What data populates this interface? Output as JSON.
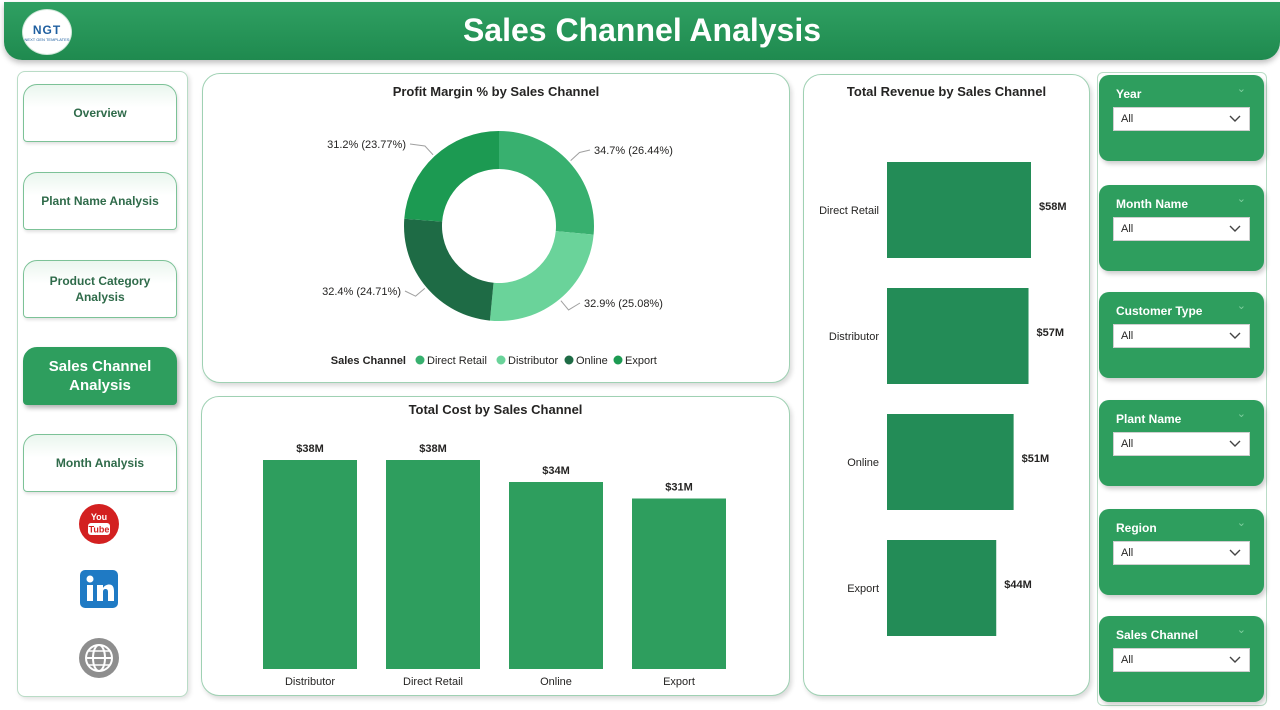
{
  "header": {
    "title": "Sales Channel Analysis",
    "logo_text": "NGT",
    "logo_subtext": "NEXT GEN TEMPLATES"
  },
  "nav": {
    "items": [
      {
        "label": "Overview"
      },
      {
        "label": "Plant Name Analysis"
      },
      {
        "label": "Product Category Analysis"
      },
      {
        "label": "Sales Channel Analysis",
        "active": true
      },
      {
        "label": "Month Analysis"
      }
    ],
    "social": [
      "youtube-icon",
      "linkedin-icon",
      "globe-icon"
    ]
  },
  "colors": {
    "accent": "#2e9e5e",
    "bar": "#2e9e5e",
    "revenue_bar": "#238c57",
    "direct_retail": "#38b06f",
    "distributor": "#6ad39a",
    "online": "#1e6b45",
    "export": "#1c9a52"
  },
  "filters": [
    {
      "label": "Year",
      "value": "All"
    },
    {
      "label": "Month Name",
      "value": "All"
    },
    {
      "label": "Customer Type",
      "value": "All"
    },
    {
      "label": "Plant Name",
      "value": "All"
    },
    {
      "label": "Region",
      "value": "All"
    },
    {
      "label": "Sales Channel",
      "value": "All"
    }
  ],
  "chart_data": [
    {
      "type": "pie",
      "title": "Profit Margin % by Sales Channel",
      "legend_title": "Sales Channel",
      "legend_position": "bottom",
      "slices": [
        {
          "name": "Direct Retail",
          "value": 34.7,
          "share": 26.44,
          "label": "34.7% (26.44%)"
        },
        {
          "name": "Distributor",
          "value": 32.9,
          "share": 25.08,
          "label": "32.9% (25.08%)"
        },
        {
          "name": "Online",
          "value": 32.4,
          "share": 24.71,
          "label": "32.4% (24.71%)"
        },
        {
          "name": "Export",
          "value": 31.2,
          "share": 23.77,
          "label": "31.2% (23.77%)"
        }
      ]
    },
    {
      "type": "bar",
      "title": "Total Cost by Sales Channel",
      "categories": [
        "Distributor",
        "Direct Retail",
        "Online",
        "Export"
      ],
      "values": [
        38,
        38,
        34,
        31
      ],
      "value_labels": [
        "$38M",
        "$38M",
        "$34M",
        "$31M"
      ],
      "unit": "$M",
      "ylim": [
        0,
        40
      ]
    },
    {
      "type": "bar",
      "orientation": "horizontal",
      "title": "Total Revenue by Sales Channel",
      "categories": [
        "Direct Retail",
        "Distributor",
        "Online",
        "Export"
      ],
      "values": [
        58,
        57,
        51,
        44
      ],
      "value_labels": [
        "$58M",
        "$57M",
        "$51M",
        "$44M"
      ],
      "unit": "$M",
      "xlim": [
        0,
        58
      ]
    }
  ]
}
